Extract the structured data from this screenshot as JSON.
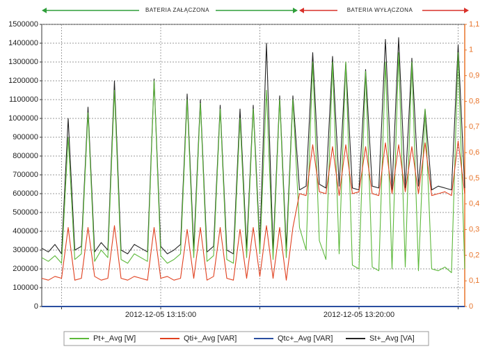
{
  "chart_data": {
    "type": "line",
    "annotations": [
      {
        "text": "BATERIA ZAŁĄCZONA",
        "color": "#2e9e3a"
      },
      {
        "text": "BATERIA WYŁĄCZONA",
        "color": "#d9312a"
      }
    ],
    "x": [
      "2012-12-05 13:12:00",
      "2012-12-05 13:12:10",
      "2012-12-05 13:12:20",
      "2012-12-05 13:12:30",
      "2012-12-05 13:12:40",
      "2012-12-05 13:12:50",
      "2012-12-05 13:13:00",
      "2012-12-05 13:13:10",
      "2012-12-05 13:13:20",
      "2012-12-05 13:13:30",
      "2012-12-05 13:13:40",
      "2012-12-05 13:13:50",
      "2012-12-05 13:14:00",
      "2012-12-05 13:14:10",
      "2012-12-05 13:14:20",
      "2012-12-05 13:14:30",
      "2012-12-05 13:14:40",
      "2012-12-05 13:14:50",
      "2012-12-05 13:15:00",
      "2012-12-05 13:15:10",
      "2012-12-05 13:15:20",
      "2012-12-05 13:15:30",
      "2012-12-05 13:15:40",
      "2012-12-05 13:15:50",
      "2012-12-05 13:16:00",
      "2012-12-05 13:16:10",
      "2012-12-05 13:16:20",
      "2012-12-05 13:16:30",
      "2012-12-05 13:16:40",
      "2012-12-05 13:16:50",
      "2012-12-05 13:17:00",
      "2012-12-05 13:17:10",
      "2012-12-05 13:17:20",
      "2012-12-05 13:17:30",
      "2012-12-05 13:17:40",
      "2012-12-05 13:17:50",
      "2012-12-05 13:18:00",
      "2012-12-05 13:18:10",
      "2012-12-05 13:18:20",
      "2012-12-05 13:18:30",
      "2012-12-05 13:18:40",
      "2012-12-05 13:18:50",
      "2012-12-05 13:19:00",
      "2012-12-05 13:19:10",
      "2012-12-05 13:19:20",
      "2012-12-05 13:19:30",
      "2012-12-05 13:19:40",
      "2012-12-05 13:19:50",
      "2012-12-05 13:20:00",
      "2012-12-05 13:20:10",
      "2012-12-05 13:20:20",
      "2012-12-05 13:20:30",
      "2012-12-05 13:20:40",
      "2012-12-05 13:20:50",
      "2012-12-05 13:21:00",
      "2012-12-05 13:21:10",
      "2012-12-05 13:21:20",
      "2012-12-05 13:21:30",
      "2012-12-05 13:21:40",
      "2012-12-05 13:21:50",
      "2012-12-05 13:22:00",
      "2012-12-05 13:22:10",
      "2012-12-05 13:22:20",
      "2012-12-05 13:22:30",
      "2012-12-05 13:22:40"
    ],
    "series": [
      {
        "name": "St+_Avg [VA]",
        "color": "#222222",
        "values": [
          310000,
          290000,
          330000,
          280000,
          1000000,
          300000,
          320000,
          1060000,
          290000,
          340000,
          300000,
          1200000,
          300000,
          280000,
          330000,
          310000,
          290000,
          1210000,
          320000,
          280000,
          300000,
          330000,
          1130000,
          310000,
          1100000,
          290000,
          320000,
          1070000,
          300000,
          280000,
          1050000,
          310000,
          1070000,
          330000,
          1400000,
          300000,
          1120000,
          310000,
          1120000,
          620000,
          640000,
          1350000,
          650000,
          630000,
          1330000,
          640000,
          1300000,
          630000,
          620000,
          1260000,
          640000,
          630000,
          1420000,
          620000,
          1430000,
          630000,
          1320000,
          640000,
          1050000,
          620000,
          640000,
          630000,
          620000,
          1390000,
          630000
        ]
      },
      {
        "name": "Pt+_Avg [W]",
        "color": "#5cb83a",
        "values": [
          260000,
          240000,
          270000,
          230000,
          900000,
          250000,
          280000,
          1030000,
          240000,
          300000,
          260000,
          1150000,
          250000,
          230000,
          280000,
          260000,
          240000,
          1200000,
          270000,
          230000,
          250000,
          280000,
          1100000,
          260000,
          1080000,
          240000,
          270000,
          1050000,
          250000,
          230000,
          1000000,
          260000,
          1050000,
          280000,
          1150000,
          250000,
          1100000,
          260000,
          1100000,
          420000,
          300000,
          1300000,
          350000,
          250000,
          1300000,
          280000,
          1300000,
          220000,
          200000,
          1250000,
          210000,
          190000,
          1300000,
          200000,
          1350000,
          210000,
          1300000,
          190000,
          1050000,
          200000,
          190000,
          210000,
          180000,
          1350000,
          200000
        ]
      },
      {
        "name": "Qti+_Avg [VAR]",
        "color": "#e0401f",
        "values": [
          150000,
          140000,
          160000,
          150000,
          420000,
          140000,
          150000,
          420000,
          160000,
          140000,
          150000,
          430000,
          150000,
          140000,
          160000,
          150000,
          140000,
          420000,
          150000,
          160000,
          140000,
          150000,
          410000,
          150000,
          420000,
          140000,
          160000,
          420000,
          150000,
          140000,
          410000,
          150000,
          420000,
          160000,
          430000,
          150000,
          420000,
          140000,
          420000,
          600000,
          590000,
          860000,
          610000,
          600000,
          850000,
          590000,
          860000,
          600000,
          610000,
          850000,
          600000,
          590000,
          870000,
          600000,
          860000,
          610000,
          850000,
          600000,
          870000,
          590000,
          600000,
          610000,
          590000,
          880000,
          600000
        ]
      },
      {
        "name": "Qtc+_Avg [VAR]",
        "color": "#2a4ea0",
        "values": [
          0,
          0,
          0,
          0,
          0,
          0,
          0,
          0,
          0,
          0,
          0,
          0,
          0,
          0,
          0,
          0,
          0,
          0,
          0,
          0,
          0,
          0,
          0,
          0,
          0,
          0,
          0,
          0,
          0,
          0,
          0,
          0,
          0,
          0,
          0,
          0,
          0,
          0,
          0,
          0,
          0,
          0,
          0,
          0,
          0,
          0,
          0,
          0,
          0,
          0,
          0,
          0,
          0,
          0,
          0,
          0,
          0,
          0,
          0,
          0,
          0,
          0,
          0,
          0,
          0
        ]
      }
    ],
    "legend_order": [
      1,
      2,
      3,
      0
    ],
    "xlim": [
      "2012-12-05 13:12:00",
      "2012-12-05 13:22:40"
    ],
    "xticks": [
      {
        "value": "2012-12-05 13:12:30",
        "label": null
      },
      "2012-12-05 13:15:00",
      {
        "value": "2012-12-05 13:17:30",
        "label": null
      },
      "2012-12-05 13:20:00",
      {
        "value": "2012-12-05 13:22:30",
        "label": null
      }
    ],
    "ylim": [
      0,
      1500000
    ],
    "yticks": [
      0,
      100000,
      200000,
      300000,
      400000,
      500000,
      600000,
      700000,
      800000,
      900000,
      1000000,
      1100000,
      1200000,
      1300000,
      1400000,
      1500000
    ],
    "y2lim": [
      0,
      1.1
    ],
    "y2ticks": [
      0,
      {
        "value": 0.1,
        "label": "0,1"
      },
      {
        "value": 0.2,
        "label": "0,2"
      },
      {
        "value": 0.3,
        "label": "0,3"
      },
      {
        "value": 0.4,
        "label": "0,4"
      },
      {
        "value": 0.5,
        "label": "0,5"
      },
      {
        "value": 0.6,
        "label": "0,6"
      },
      {
        "value": 0.7,
        "label": "0,7"
      },
      {
        "value": 0.8,
        "label": "0,8"
      },
      {
        "value": 0.9,
        "label": "0,9"
      },
      1,
      {
        "value": 1.1,
        "label": "1,1"
      }
    ],
    "y2color": "#e8742a",
    "grid": true
  }
}
